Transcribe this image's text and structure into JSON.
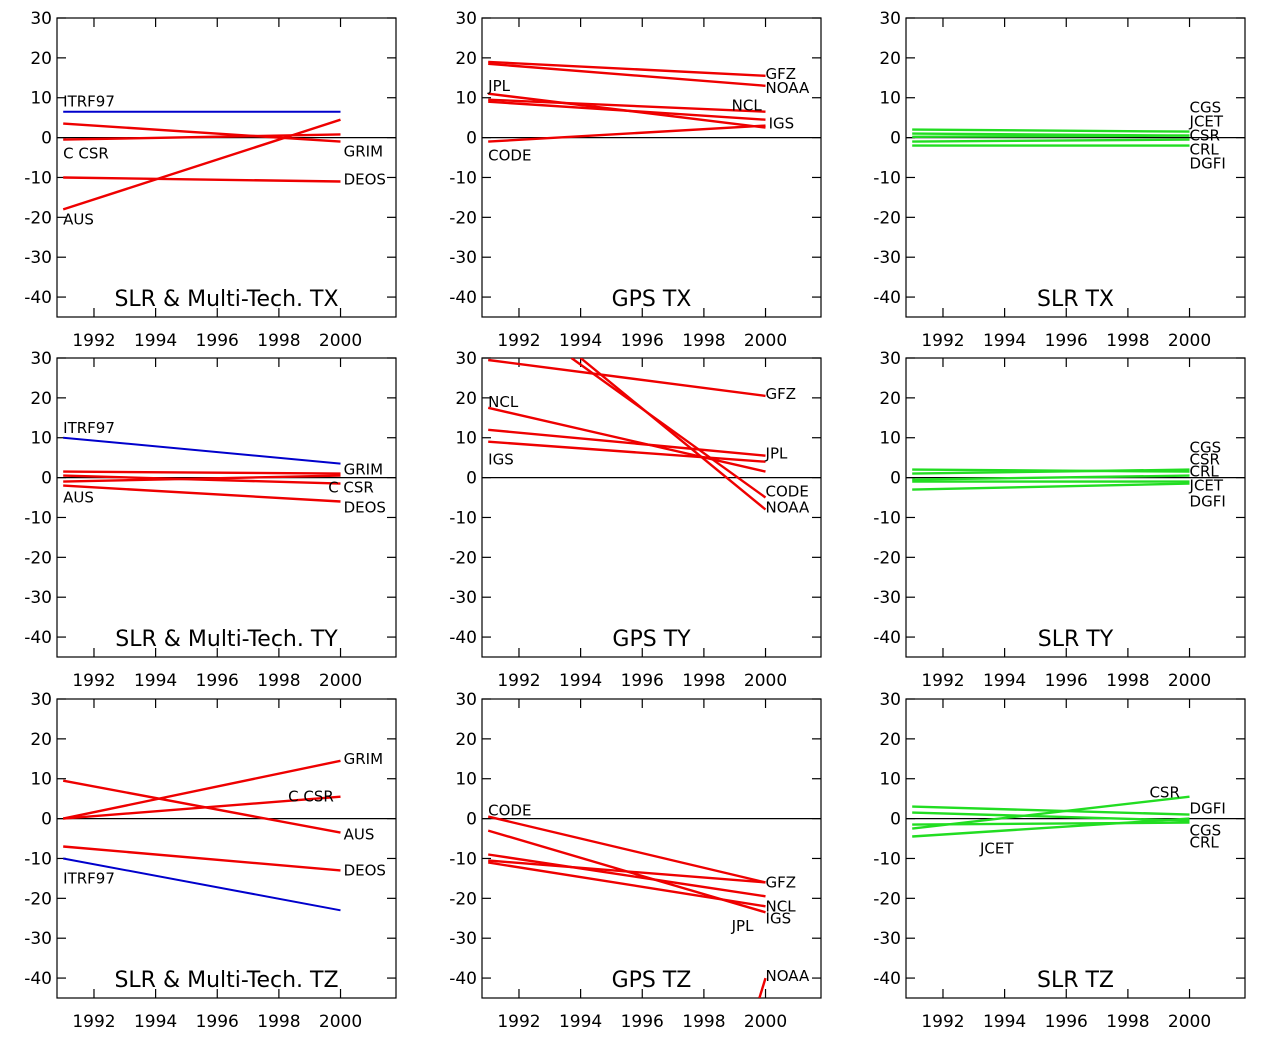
{
  "colors": {
    "itrf": "#0000cc",
    "red": "#ee0000",
    "green": "#22dd22",
    "axis": "#000000"
  },
  "chart_data": [
    {
      "type": "line",
      "title": "SLR & Multi-Tech. TX",
      "xlim": [
        1990.8,
        2001.8
      ],
      "ylim": [
        -45,
        30
      ],
      "xticks": [
        1992,
        1994,
        1996,
        1998,
        2000
      ],
      "yticks": [
        30,
        20,
        10,
        0,
        -10,
        -20,
        -30,
        -40
      ],
      "series": [
        {
          "name": "ITRF97",
          "color": "itrf",
          "x": [
            1991,
            2000
          ],
          "y": [
            6.5,
            6.5
          ]
        },
        {
          "name": "C CSR",
          "color": "red",
          "x": [
            1991,
            2000
          ],
          "y": [
            -0.5,
            0.8
          ]
        },
        {
          "name": "GRIM",
          "color": "red",
          "x": [
            1991,
            2000
          ],
          "y": [
            3.5,
            -1
          ]
        },
        {
          "name": "DEOS",
          "color": "red",
          "x": [
            1991,
            2000
          ],
          "y": [
            -10,
            -11
          ]
        },
        {
          "name": "AUS",
          "color": "red",
          "x": [
            1991,
            2000
          ],
          "y": [
            -18,
            4.5
          ]
        }
      ],
      "labels": [
        {
          "text": "ITRF97",
          "x": 1991,
          "y": 9
        },
        {
          "text": "C CSR",
          "x": 1991,
          "y": -4
        },
        {
          "text": "GRIM",
          "x": 2000.1,
          "y": -3.5
        },
        {
          "text": "DEOS",
          "x": 2000.1,
          "y": -10.5
        },
        {
          "text": "AUS",
          "x": 1991,
          "y": -20.5
        }
      ]
    },
    {
      "type": "line",
      "title": "GPS TX",
      "xlim": [
        1990.8,
        2001.8
      ],
      "ylim": [
        -45,
        30
      ],
      "xticks": [
        1992,
        1994,
        1996,
        1998,
        2000
      ],
      "yticks": [
        30,
        20,
        10,
        0,
        -10,
        -20,
        -30,
        -40
      ],
      "series": [
        {
          "name": "GFZ",
          "color": "red",
          "x": [
            1991,
            2000
          ],
          "y": [
            19,
            15.5
          ]
        },
        {
          "name": "NOAA",
          "color": "red",
          "x": [
            1991,
            2000
          ],
          "y": [
            18.5,
            13
          ]
        },
        {
          "name": "JPL",
          "color": "red",
          "x": [
            1991,
            2000
          ],
          "y": [
            11,
            2.5
          ]
        },
        {
          "name": "NCL",
          "color": "red",
          "x": [
            1991,
            2000
          ],
          "y": [
            9.5,
            6.5
          ]
        },
        {
          "name": "IGS",
          "color": "red",
          "x": [
            1991,
            2000
          ],
          "y": [
            9,
            4.5
          ]
        },
        {
          "name": "CODE",
          "color": "red",
          "x": [
            1991,
            2000
          ],
          "y": [
            -1,
            3
          ]
        }
      ],
      "labels": [
        {
          "text": "GFZ",
          "x": 2000,
          "y": 16
        },
        {
          "text": "NOAA",
          "x": 2000,
          "y": 12.5
        },
        {
          "text": "JPL",
          "x": 1991,
          "y": 13
        },
        {
          "text": "NCL",
          "x": 1998.9,
          "y": 8
        },
        {
          "text": "IGS",
          "x": 2000.1,
          "y": 3.5
        },
        {
          "text": "CODE",
          "x": 1991,
          "y": -4.5
        }
      ]
    },
    {
      "type": "line",
      "title": "SLR TX",
      "xlim": [
        1990.8,
        2001.8
      ],
      "ylim": [
        -45,
        30
      ],
      "xticks": [
        1992,
        1994,
        1996,
        1998,
        2000
      ],
      "yticks": [
        30,
        20,
        10,
        0,
        -10,
        -20,
        -30,
        -40
      ],
      "series": [
        {
          "name": "CGS",
          "color": "green",
          "x": [
            1991,
            2000
          ],
          "y": [
            2,
            1.5
          ]
        },
        {
          "name": "JCET",
          "color": "green",
          "x": [
            1991,
            2000
          ],
          "y": [
            1,
            0.5
          ]
        },
        {
          "name": "CSR",
          "color": "green",
          "x": [
            1991,
            2000
          ],
          "y": [
            0.2,
            0.5
          ]
        },
        {
          "name": "CRL",
          "color": "green",
          "x": [
            1991,
            2000
          ],
          "y": [
            -1,
            -0.5
          ]
        },
        {
          "name": "DGFI",
          "color": "green",
          "x": [
            1991,
            2000
          ],
          "y": [
            -2,
            -2
          ]
        }
      ],
      "labels": [
        {
          "text": "CGS",
          "x": 2000,
          "y": 7.5
        },
        {
          "text": "JCET",
          "x": 2000,
          "y": 4
        },
        {
          "text": "CSR",
          "x": 2000,
          "y": 0.5
        },
        {
          "text": "CRL",
          "x": 2000,
          "y": -3
        },
        {
          "text": "DGFI",
          "x": 2000,
          "y": -6.5
        }
      ]
    },
    {
      "type": "line",
      "title": "SLR & Multi-Tech. TY",
      "xlim": [
        1990.8,
        2001.8
      ],
      "ylim": [
        -45,
        30
      ],
      "xticks": [
        1992,
        1994,
        1996,
        1998,
        2000
      ],
      "yticks": [
        30,
        20,
        10,
        0,
        -10,
        -20,
        -30,
        -40
      ],
      "series": [
        {
          "name": "ITRF97",
          "color": "itrf",
          "x": [
            1991,
            2000
          ],
          "y": [
            10,
            3.5
          ]
        },
        {
          "name": "GRIM",
          "color": "red",
          "x": [
            1991,
            2000
          ],
          "y": [
            1.5,
            1
          ]
        },
        {
          "name": "C CSR",
          "color": "red",
          "x": [
            1991,
            2000
          ],
          "y": [
            0.5,
            -1.5
          ]
        },
        {
          "name": "AUS",
          "color": "red",
          "x": [
            1991,
            2000
          ],
          "y": [
            -1,
            0.5
          ]
        },
        {
          "name": "DEOS",
          "color": "red",
          "x": [
            1991,
            2000
          ],
          "y": [
            -2,
            -6
          ]
        }
      ],
      "labels": [
        {
          "text": "ITRF97",
          "x": 1991,
          "y": 12.5
        },
        {
          "text": "GRIM",
          "x": 2000.1,
          "y": 2
        },
        {
          "text": "C CSR",
          "x": 1999.6,
          "y": -2.5
        },
        {
          "text": "AUS",
          "x": 1991,
          "y": -5
        },
        {
          "text": "DEOS",
          "x": 2000.1,
          "y": -7.5
        }
      ]
    },
    {
      "type": "line",
      "title": "GPS TY",
      "xlim": [
        1990.8,
        2001.8
      ],
      "ylim": [
        -45,
        30
      ],
      "xticks": [
        1992,
        1994,
        1996,
        1998,
        2000
      ],
      "yticks": [
        30,
        20,
        10,
        0,
        -10,
        -20,
        -30,
        -40
      ],
      "series": [
        {
          "name": "GFZ",
          "color": "red",
          "x": [
            1991,
            2000
          ],
          "y": [
            29.5,
            20.5
          ]
        },
        {
          "name": "NCL",
          "color": "red",
          "x": [
            1991,
            2000
          ],
          "y": [
            17.5,
            1.5
          ]
        },
        {
          "name": "JPL",
          "color": "red",
          "x": [
            1991,
            2000
          ],
          "y": [
            12,
            5.5
          ]
        },
        {
          "name": "IGS",
          "color": "red",
          "x": [
            1991,
            2000
          ],
          "y": [
            9,
            4
          ]
        },
        {
          "name": "CODE",
          "color": "red",
          "x": [
            1993.7,
            2000
          ],
          "y": [
            30,
            -5
          ]
        },
        {
          "name": "NOAA",
          "color": "red",
          "x": [
            1994,
            2000
          ],
          "y": [
            30,
            -8
          ]
        }
      ],
      "labels": [
        {
          "text": "GFZ",
          "x": 2000,
          "y": 21
        },
        {
          "text": "NCL",
          "x": 1991,
          "y": 19
        },
        {
          "text": "JPL",
          "x": 2000,
          "y": 6
        },
        {
          "text": "IGS",
          "x": 1991,
          "y": 4.5
        },
        {
          "text": "CODE",
          "x": 2000,
          "y": -3.5
        },
        {
          "text": "NOAA",
          "x": 2000,
          "y": -7.5
        }
      ]
    },
    {
      "type": "line",
      "title": "SLR TY",
      "xlim": [
        1990.8,
        2001.8
      ],
      "ylim": [
        -45,
        30
      ],
      "xticks": [
        1992,
        1994,
        1996,
        1998,
        2000
      ],
      "yticks": [
        30,
        20,
        10,
        0,
        -10,
        -20,
        -30,
        -40
      ],
      "series": [
        {
          "name": "CGS",
          "color": "green",
          "x": [
            1991,
            2000
          ],
          "y": [
            2,
            1.5
          ]
        },
        {
          "name": "CSR",
          "color": "green",
          "x": [
            1991,
            2000
          ],
          "y": [
            1,
            2
          ]
        },
        {
          "name": "CRL",
          "color": "green",
          "x": [
            1991,
            2000
          ],
          "y": [
            -0.5,
            0.5
          ]
        },
        {
          "name": "JCET",
          "color": "green",
          "x": [
            1991,
            2000
          ],
          "y": [
            -1,
            -1
          ]
        },
        {
          "name": "DGFI",
          "color": "green",
          "x": [
            1991,
            2000
          ],
          "y": [
            -3,
            -1.5
          ]
        }
      ],
      "labels": [
        {
          "text": "CGS",
          "x": 2000,
          "y": 7.5
        },
        {
          "text": "CSR",
          "x": 2000,
          "y": 4.5
        },
        {
          "text": "CRL",
          "x": 2000,
          "y": 1.5
        },
        {
          "text": "JCET",
          "x": 2000,
          "y": -2
        },
        {
          "text": "DGFI",
          "x": 2000,
          "y": -6
        }
      ]
    },
    {
      "type": "line",
      "title": "SLR & Multi-Tech. TZ",
      "xlim": [
        1990.8,
        2001.8
      ],
      "ylim": [
        -45,
        30
      ],
      "xticks": [
        1992,
        1994,
        1996,
        1998,
        2000
      ],
      "yticks": [
        30,
        20,
        10,
        0,
        -10,
        -20,
        -30,
        -40
      ],
      "series": [
        {
          "name": "GRIM",
          "color": "red",
          "x": [
            1991,
            2000
          ],
          "y": [
            0,
            14.5
          ]
        },
        {
          "name": "C CSR",
          "color": "red",
          "x": [
            1991,
            2000
          ],
          "y": [
            0,
            5.5
          ]
        },
        {
          "name": "AUS",
          "color": "red",
          "x": [
            1991,
            2000
          ],
          "y": [
            9.5,
            -3.5
          ]
        },
        {
          "name": "DEOS",
          "color": "red",
          "x": [
            1991,
            2000
          ],
          "y": [
            -7,
            -13
          ]
        },
        {
          "name": "ITRF97",
          "color": "itrf",
          "x": [
            1991,
            2000
          ],
          "y": [
            -10,
            -23
          ]
        }
      ],
      "labels": [
        {
          "text": "GRIM",
          "x": 2000.1,
          "y": 15
        },
        {
          "text": "C CSR",
          "x": 1998.3,
          "y": 5.5
        },
        {
          "text": "AUS",
          "x": 2000.1,
          "y": -4
        },
        {
          "text": "DEOS",
          "x": 2000.1,
          "y": -13
        },
        {
          "text": "ITRF97",
          "x": 1991,
          "y": -15
        }
      ]
    },
    {
      "type": "line",
      "title": "GPS TZ",
      "xlim": [
        1990.8,
        2001.8
      ],
      "ylim": [
        -45,
        30
      ],
      "xticks": [
        1992,
        1994,
        1996,
        1998,
        2000
      ],
      "yticks": [
        30,
        20,
        10,
        0,
        -10,
        -20,
        -30,
        -40
      ],
      "series": [
        {
          "name": "CODE",
          "color": "red",
          "x": [
            1991,
            2000
          ],
          "y": [
            0.5,
            -16
          ]
        },
        {
          "name": "GFZ",
          "color": "red",
          "x": [
            1991,
            2000
          ],
          "y": [
            -10.5,
            -16
          ]
        },
        {
          "name": "NCL",
          "color": "red",
          "x": [
            1991,
            2000
          ],
          "y": [
            -9,
            -19.5
          ]
        },
        {
          "name": "IGS",
          "color": "red",
          "x": [
            1991,
            2000
          ],
          "y": [
            -11,
            -22
          ]
        },
        {
          "name": "JPL",
          "color": "red",
          "x": [
            1991,
            2000
          ],
          "y": [
            -3,
            -23.5
          ]
        },
        {
          "name": "NOAA",
          "color": "red",
          "x": [
            1999.8,
            2000
          ],
          "y": [
            -45,
            -40
          ]
        }
      ],
      "labels": [
        {
          "text": "CODE",
          "x": 1991,
          "y": 2
        },
        {
          "text": "GFZ",
          "x": 2000,
          "y": -16
        },
        {
          "text": "NCL",
          "x": 2000,
          "y": -22
        },
        {
          "text": "IGS",
          "x": 2000,
          "y": -25
        },
        {
          "text": "JPL",
          "x": 1998.9,
          "y": -27
        },
        {
          "text": "NOAA",
          "x": 2000,
          "y": -39.5
        }
      ]
    },
    {
      "type": "line",
      "title": "SLR TZ",
      "xlim": [
        1990.8,
        2001.8
      ],
      "ylim": [
        -45,
        30
      ],
      "xticks": [
        1992,
        1994,
        1996,
        1998,
        2000
      ],
      "yticks": [
        30,
        20,
        10,
        0,
        -10,
        -20,
        -30,
        -40
      ],
      "series": [
        {
          "name": "CSR",
          "color": "green",
          "x": [
            1991,
            2000
          ],
          "y": [
            -2.5,
            5.5
          ]
        },
        {
          "name": "DGFI",
          "color": "green",
          "x": [
            1991,
            2000
          ],
          "y": [
            3,
            1
          ]
        },
        {
          "name": "CGS",
          "color": "green",
          "x": [
            1991,
            2000
          ],
          "y": [
            1.5,
            -0.5
          ]
        },
        {
          "name": "CRL",
          "color": "green",
          "x": [
            1991,
            2000
          ],
          "y": [
            -1.5,
            -1
          ]
        },
        {
          "name": "JCET",
          "color": "green",
          "x": [
            1991,
            2000
          ],
          "y": [
            -4.5,
            0
          ]
        }
      ],
      "labels": [
        {
          "text": "CSR",
          "x": 1998.7,
          "y": 6.5
        },
        {
          "text": "DGFI",
          "x": 2000,
          "y": 2.5
        },
        {
          "text": "CGS",
          "x": 2000,
          "y": -3
        },
        {
          "text": "CRL",
          "x": 2000,
          "y": -6
        },
        {
          "text": "JCET",
          "x": 1993.2,
          "y": -7.5
        }
      ]
    }
  ]
}
